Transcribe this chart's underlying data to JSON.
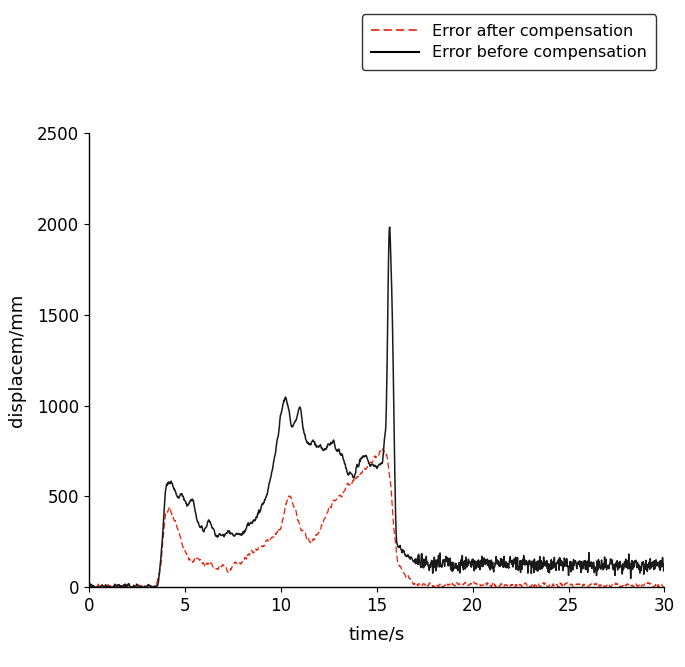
{
  "title": "",
  "xlabel": "time/s",
  "ylabel": "displacem/mm",
  "xlim": [
    0,
    30
  ],
  "ylim": [
    0,
    2500
  ],
  "xticks": [
    0,
    5,
    10,
    15,
    20,
    25,
    30
  ],
  "yticks": [
    0,
    500,
    1000,
    1500,
    2000,
    2500
  ],
  "legend": {
    "entry1": "Error after compensation",
    "entry2": "Error before compensation",
    "color1": "#e8200a",
    "color2": "#000000"
  },
  "line_before_color": "#1a1a1a",
  "line_after_color": "#e8200a",
  "background_color": "#ffffff",
  "figsize": [
    6.85,
    6.67
  ],
  "dpi": 100
}
